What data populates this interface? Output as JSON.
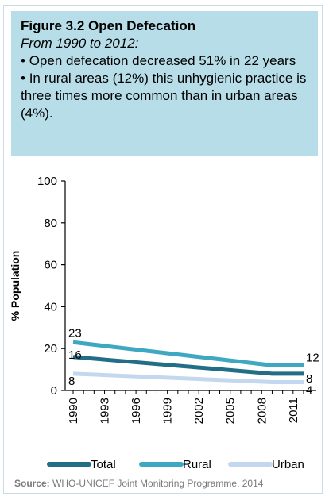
{
  "header": {
    "title": "Figure 3.2 Open Defecation",
    "subtitle": "From 1990 to 2012:",
    "bullets": [
      "Open defecation decreased 51% in 22 years",
      "In rural areas (12%) this unhygienic practice is three times more common than in urban areas (4%)."
    ]
  },
  "colors": {
    "box_bg": "#b7dde8",
    "total": "#236e87",
    "rural": "#3ea8c3",
    "urban": "#c3d8ef"
  },
  "chart_data": {
    "type": "line",
    "title": "",
    "xlabel": "",
    "ylabel": "% Population",
    "x": [
      1990,
      2012
    ],
    "x_ticks": [
      "1990",
      "1993",
      "1996",
      "1999",
      "2002",
      "2005",
      "2008",
      "2011"
    ],
    "y_ticks": [
      "0",
      "20",
      "40",
      "60",
      "80",
      "100"
    ],
    "ylim": [
      0,
      100
    ],
    "xlim": [
      1990,
      2012
    ],
    "grid": false,
    "legend_position": "bottom",
    "series": [
      {
        "name": "Total",
        "values": [
          16,
          8
        ],
        "labels": [
          "16",
          "8"
        ],
        "color": "#236e87"
      },
      {
        "name": "Rural",
        "values": [
          23,
          12
        ],
        "labels": [
          "23",
          "12"
        ],
        "color": "#3ea8c3"
      },
      {
        "name": "Urban",
        "values": [
          8,
          4
        ],
        "labels": [
          "8",
          "4"
        ],
        "color": "#c3d8ef"
      }
    ]
  },
  "source": {
    "label": "Source:",
    "text": "WHO-UNICEF Joint Monitoring Programme, 2014"
  }
}
